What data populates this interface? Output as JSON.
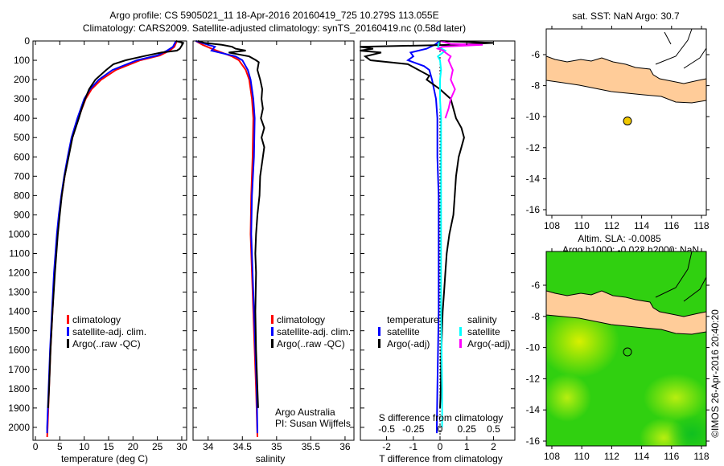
{
  "title_line1": "Argo profile: CS 5905021_11 18-Apr-2016 20160419_725 10.279S 113.055E",
  "title_line2": "Climatology: CARS2009. Satellite-adjusted climatology: synTS_20160419.nc (0.58d later)",
  "copyright": "©IMOS 26-Apr-2016 20:40:20",
  "colors": {
    "climatology": "#ff0000",
    "satellite": "#0000ff",
    "argo": "#000000",
    "sal_satellite": "#00ffff",
    "sal_argo": "#ff00ff",
    "land": "#ffcc99",
    "sst_dot": "#f0c800"
  },
  "chart_data": [
    {
      "type": "line",
      "name": "temperature",
      "xlabel": "temperature (deg C)",
      "ylabel": "",
      "xlim": [
        -0.5,
        31
      ],
      "ylim": [
        2067,
        0
      ],
      "xticks": [
        0,
        5,
        10,
        15,
        20,
        25,
        30
      ],
      "yticks": [
        0,
        100,
        200,
        300,
        400,
        500,
        600,
        700,
        800,
        900,
        1000,
        1100,
        1200,
        1300,
        1400,
        1500,
        1600,
        1700,
        1800,
        1900,
        2000
      ],
      "legend": [
        "climatology",
        "satellite-adj. clim.",
        "Argo(..raw -QC)"
      ],
      "series": [
        {
          "name": "climatology",
          "color": "#ff0000",
          "depth": [
            0,
            30,
            50,
            75,
            100,
            150,
            200,
            250,
            300,
            400,
            500,
            600,
            700,
            800,
            900,
            1000,
            1200,
            1400,
            1600,
            1800,
            2000,
            2050
          ],
          "values": [
            29,
            28.5,
            27.5,
            25.5,
            21.5,
            16.5,
            13.5,
            11.5,
            10.3,
            8.8,
            7.6,
            6.7,
            6,
            5.4,
            4.9,
            4.5,
            3.9,
            3.5,
            3.1,
            2.8,
            2.5,
            2.4
          ]
        },
        {
          "name": "satellite-adj. clim.",
          "color": "#0000ff",
          "depth": [
            0,
            30,
            50,
            75,
            100,
            150,
            200,
            250,
            300,
            400,
            500,
            600,
            700,
            800,
            900,
            1000,
            1200,
            1400,
            1600,
            1800,
            2000,
            2030
          ],
          "values": [
            28.8,
            28.2,
            27,
            25,
            20.8,
            15.8,
            13,
            11.2,
            10,
            8.6,
            7.4,
            6.6,
            5.9,
            5.3,
            4.8,
            4.4,
            3.8,
            3.4,
            3,
            2.7,
            2.4,
            2.4
          ]
        },
        {
          "name": "Argo(..raw -QC)",
          "color": "#000000",
          "depth": [
            0,
            10,
            20,
            40,
            50,
            60,
            80,
            100,
            120,
            150,
            200,
            250,
            300,
            350,
            400,
            500,
            600,
            700,
            800,
            900,
            1000,
            1200,
            1400,
            1600,
            1800,
            1900
          ],
          "values": [
            28.8,
            30.3,
            30.1,
            29.6,
            29,
            25.8,
            22,
            18.5,
            16,
            14.5,
            12.3,
            11,
            10.2,
            9.5,
            8.9,
            7.6,
            6.8,
            6,
            5.4,
            5,
            4.6,
            4,
            3.5,
            3.1,
            2.8,
            2.6
          ]
        }
      ]
    },
    {
      "type": "line",
      "name": "salinity",
      "xlabel": "salinity",
      "xlim": [
        33.78,
        36.13
      ],
      "ylim": [
        2067,
        0
      ],
      "xticks": [
        34,
        34.5,
        35,
        35.5,
        36
      ],
      "legend": [
        "climatology",
        "satellite-adj. clim.",
        "Argo(..raw -QC)"
      ],
      "annotation": [
        "Argo Australia",
        "PI: Susan Wijffels"
      ],
      "series": [
        {
          "name": "climatology",
          "color": "#ff0000",
          "depth": [
            0,
            20,
            40,
            60,
            80,
            100,
            150,
            200,
            300,
            400,
            600,
            800,
            1000,
            1200,
            1500,
            1800,
            2050
          ],
          "values": [
            33.82,
            33.92,
            34.05,
            34.2,
            34.35,
            34.45,
            34.55,
            34.6,
            34.64,
            34.66,
            34.65,
            34.63,
            34.62,
            34.64,
            34.67,
            34.7,
            34.72
          ]
        },
        {
          "name": "satellite-adj. clim.",
          "color": "#0000ff",
          "depth": [
            0,
            20,
            30,
            50,
            80,
            100,
            150,
            200,
            300,
            400,
            600,
            800,
            1000,
            1200,
            1500,
            1800,
            2030
          ],
          "values": [
            33.82,
            34.0,
            34.1,
            34.05,
            34.4,
            34.5,
            34.58,
            34.62,
            34.66,
            34.68,
            34.67,
            34.64,
            34.63,
            34.65,
            34.68,
            34.71,
            34.72
          ]
        },
        {
          "name": "Argo(..raw -QC)",
          "color": "#000000",
          "depth": [
            0,
            10,
            20,
            30,
            40,
            50,
            60,
            70,
            80,
            100,
            110,
            150,
            200,
            250,
            300,
            350,
            400,
            450,
            500,
            550,
            600,
            700,
            800,
            900,
            1000,
            1100,
            1200,
            1400,
            1600,
            1800,
            1900
          ],
          "values": [
            33.85,
            33.95,
            34.2,
            34.35,
            34.4,
            34.55,
            34.3,
            34.45,
            34.6,
            34.7,
            34.74,
            34.72,
            34.76,
            34.79,
            34.78,
            34.8,
            34.77,
            34.82,
            34.78,
            34.82,
            34.8,
            34.76,
            34.75,
            34.72,
            34.7,
            34.69,
            34.7,
            34.69,
            34.7,
            34.72,
            34.73
          ]
        }
      ]
    },
    {
      "type": "line",
      "name": "difference",
      "xlabel": "T difference from climatology",
      "x2label": "S difference from climatology",
      "xlim": [
        -2.98,
        2.8
      ],
      "x2lim": [
        -0.745,
        0.7
      ],
      "ylim": [
        2067,
        0
      ],
      "xticks": [
        -2,
        -1,
        0,
        1,
        2
      ],
      "x2ticks": [
        -0.5,
        -0.25,
        0,
        0.25,
        0.5
      ],
      "x2ticklabels": [
        "-0.5",
        "-0.25",
        "0",
        "0.25",
        "0.5"
      ],
      "legend_t": {
        "title": "temperature",
        "items": [
          "satellite",
          "Argo(-adj)"
        ]
      },
      "legend_s": {
        "title": "salinity",
        "items": [
          "satellite",
          "Argo(-adj)"
        ]
      },
      "series": [
        {
          "name": "T satellite",
          "axis": "T",
          "color": "#0000ff",
          "depth": [
            0,
            20,
            40,
            60,
            80,
            100,
            130,
            150,
            200,
            300,
            400,
            600,
            800,
            1000,
            1400,
            1800,
            2000,
            2030
          ],
          "values": [
            0,
            -0.2,
            -0.5,
            -1.1,
            -1.0,
            -1.2,
            -0.6,
            -0.4,
            -0.3,
            -0.15,
            -0.1,
            -0.1,
            -0.05,
            -0.05,
            -0.05,
            -0.1,
            -0.12,
            -0.12
          ]
        },
        {
          "name": "T Argo(-adj)",
          "axis": "T",
          "color": "#000000",
          "depth": [
            0,
            10,
            20,
            30,
            40,
            50,
            60,
            80,
            100,
            120,
            150,
            180,
            200,
            250,
            300,
            350,
            400,
            450,
            500,
            550,
            600,
            700,
            800,
            900,
            1000,
            1100,
            1200,
            1300,
            1400,
            1600,
            1800,
            1900
          ],
          "values": [
            0,
            2.0,
            0.5,
            -3,
            -2.5,
            -3,
            -2.2,
            -2.8,
            -2.6,
            -1.2,
            -0.8,
            -0.4,
            -0.5,
            0,
            0.4,
            0.5,
            0.6,
            0.8,
            0.9,
            0.8,
            0.7,
            0.6,
            0.55,
            0.5,
            0.35,
            0.25,
            0.2,
            0.15,
            0.1,
            0.05,
            0.03,
            0.0
          ]
        },
        {
          "name": "S satellite",
          "axis": "S",
          "color": "#00ffff",
          "depth": [
            0,
            30,
            50,
            80,
            100,
            150,
            200,
            300,
            400,
            600,
            800,
            1000,
            1400,
            1800,
            2000
          ],
          "values": [
            0,
            -0.02,
            0.05,
            -0.02,
            0.0,
            0.01,
            0.0,
            0.0,
            0.01,
            0.01,
            0.01,
            0.01,
            0.01,
            0.02,
            0.02
          ]
        },
        {
          "name": "S Argo(-adj)",
          "axis": "S",
          "color": "#ff00ff",
          "depth": [
            0,
            15,
            20,
            25,
            30,
            40,
            50,
            60,
            80,
            100,
            150,
            200,
            250,
            300,
            350,
            400
          ],
          "values": [
            0,
            0.1,
            0.4,
            0.2,
            0.02,
            -0.02,
            0.03,
            0.05,
            0.1,
            0.08,
            0.12,
            0.1,
            0.14,
            0.1,
            0.08,
            0.05
          ]
        }
      ]
    },
    {
      "type": "scatter",
      "name": "sst_map",
      "title": "sat. SST: NaN Argo: 30.7",
      "xlim": [
        107.6,
        118.3
      ],
      "ylim": [
        -16.3,
        -4.4
      ],
      "xticks": [
        108,
        110,
        112,
        114,
        116,
        118
      ],
      "yticks": [
        -6,
        -8,
        -10,
        -12,
        -14,
        -16
      ],
      "point": {
        "lon": 113.055,
        "lat": -10.279
      }
    },
    {
      "type": "heatmap",
      "name": "sla_map",
      "title_line1": "Altim. SLA: -0.0085",
      "title_line2": "Argo h1000: -0.022 h2000: NaN",
      "xlim": [
        107.6,
        118.3
      ],
      "ylim": [
        -16.3,
        -4.1
      ],
      "xticks": [
        108,
        110,
        112,
        114,
        116,
        118
      ],
      "yticks": [
        -6,
        -8,
        -10,
        -12,
        -14,
        -16
      ],
      "point": {
        "lon": 113.055,
        "lat": -10.279
      }
    }
  ]
}
